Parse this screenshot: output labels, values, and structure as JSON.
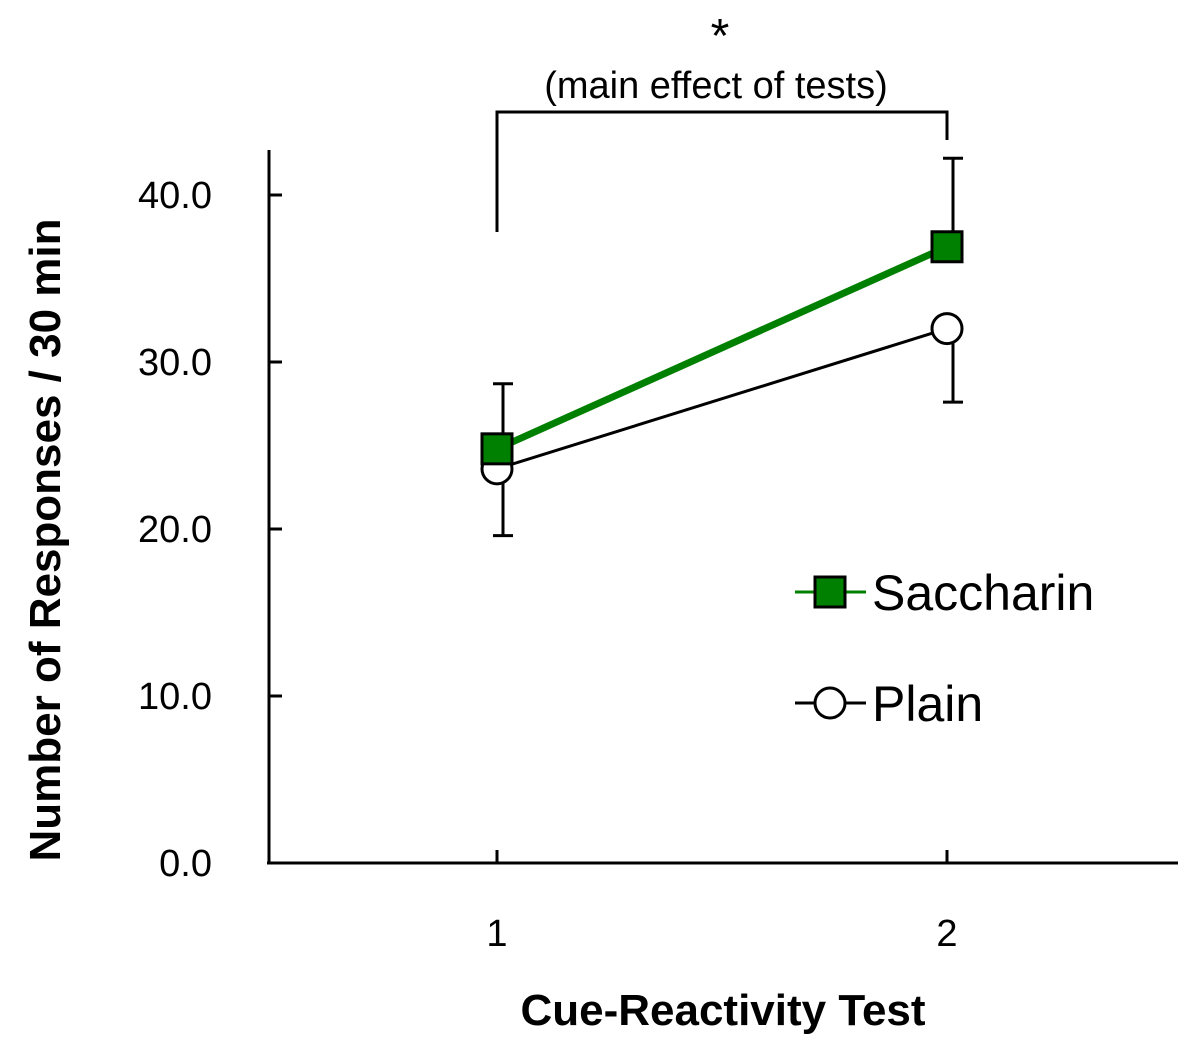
{
  "chart_data": {
    "type": "line",
    "title": "",
    "xlabel": "Cue-Reactivity Test",
    "ylabel": "Number of Responses / 30 min",
    "categories": [
      "1",
      "2"
    ],
    "ylim": [
      0,
      43
    ],
    "y_ticks": [
      "0.0",
      "10.0",
      "20.0",
      "30.0",
      "40.0"
    ],
    "y_tick_values": [
      0,
      10,
      20,
      30,
      40
    ],
    "series": [
      {
        "name": "Saccharin",
        "values": [
          24.8,
          36.9
        ],
        "errors": [
          3.9,
          5.3
        ],
        "color": "#008000",
        "marker": "square",
        "marker_fill": "#008000"
      },
      {
        "name": "Plain",
        "values": [
          23.6,
          32.0
        ],
        "errors": [
          4.0,
          4.4
        ],
        "color": "#000000",
        "marker": "circle",
        "marker_fill": "#ffffff"
      }
    ],
    "annotation": {
      "star": "*",
      "text": "(main effect of tests)",
      "bracket_top": 45,
      "bracket_from": "1",
      "bracket_to": "2"
    },
    "legend_position": "right-middle"
  }
}
